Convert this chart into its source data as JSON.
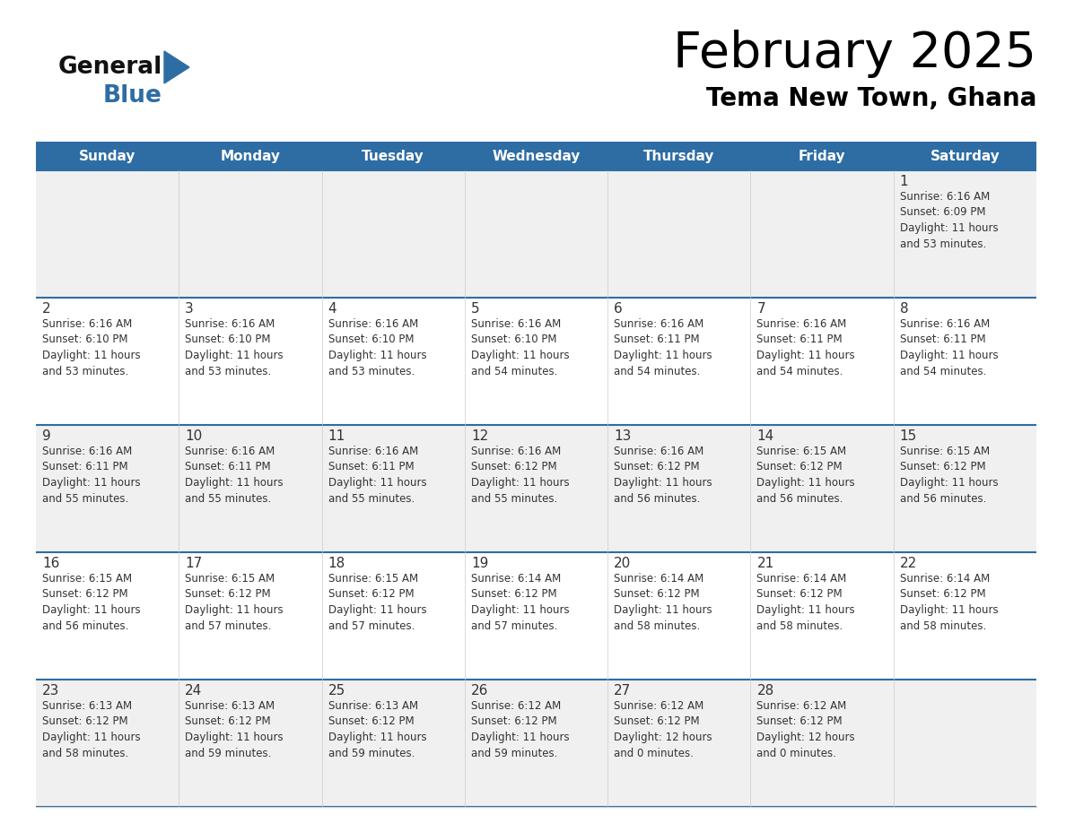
{
  "title": "February 2025",
  "subtitle": "Tema New Town, Ghana",
  "header_bg": "#2e6da4",
  "header_text": "#ffffff",
  "row0_bg": "#f0f0f0",
  "row1_bg": "#ffffff",
  "cell_text": "#333333",
  "border_color": "#2e6da4",
  "vert_line_color": "#cccccc",
  "day_headers": [
    "Sunday",
    "Monday",
    "Tuesday",
    "Wednesday",
    "Thursday",
    "Friday",
    "Saturday"
  ],
  "logo_general_color": "#111111",
  "logo_blue_color": "#2e6da4",
  "calendar": [
    [
      null,
      null,
      null,
      null,
      null,
      null,
      {
        "day": 1,
        "sunrise": "6:16 AM",
        "sunset": "6:09 PM",
        "daylight": "11 hours\nand 53 minutes."
      }
    ],
    [
      {
        "day": 2,
        "sunrise": "6:16 AM",
        "sunset": "6:10 PM",
        "daylight": "11 hours\nand 53 minutes."
      },
      {
        "day": 3,
        "sunrise": "6:16 AM",
        "sunset": "6:10 PM",
        "daylight": "11 hours\nand 53 minutes."
      },
      {
        "day": 4,
        "sunrise": "6:16 AM",
        "sunset": "6:10 PM",
        "daylight": "11 hours\nand 53 minutes."
      },
      {
        "day": 5,
        "sunrise": "6:16 AM",
        "sunset": "6:10 PM",
        "daylight": "11 hours\nand 54 minutes."
      },
      {
        "day": 6,
        "sunrise": "6:16 AM",
        "sunset": "6:11 PM",
        "daylight": "11 hours\nand 54 minutes."
      },
      {
        "day": 7,
        "sunrise": "6:16 AM",
        "sunset": "6:11 PM",
        "daylight": "11 hours\nand 54 minutes."
      },
      {
        "day": 8,
        "sunrise": "6:16 AM",
        "sunset": "6:11 PM",
        "daylight": "11 hours\nand 54 minutes."
      }
    ],
    [
      {
        "day": 9,
        "sunrise": "6:16 AM",
        "sunset": "6:11 PM",
        "daylight": "11 hours\nand 55 minutes."
      },
      {
        "day": 10,
        "sunrise": "6:16 AM",
        "sunset": "6:11 PM",
        "daylight": "11 hours\nand 55 minutes."
      },
      {
        "day": 11,
        "sunrise": "6:16 AM",
        "sunset": "6:11 PM",
        "daylight": "11 hours\nand 55 minutes."
      },
      {
        "day": 12,
        "sunrise": "6:16 AM",
        "sunset": "6:12 PM",
        "daylight": "11 hours\nand 55 minutes."
      },
      {
        "day": 13,
        "sunrise": "6:16 AM",
        "sunset": "6:12 PM",
        "daylight": "11 hours\nand 56 minutes."
      },
      {
        "day": 14,
        "sunrise": "6:15 AM",
        "sunset": "6:12 PM",
        "daylight": "11 hours\nand 56 minutes."
      },
      {
        "day": 15,
        "sunrise": "6:15 AM",
        "sunset": "6:12 PM",
        "daylight": "11 hours\nand 56 minutes."
      }
    ],
    [
      {
        "day": 16,
        "sunrise": "6:15 AM",
        "sunset": "6:12 PM",
        "daylight": "11 hours\nand 56 minutes."
      },
      {
        "day": 17,
        "sunrise": "6:15 AM",
        "sunset": "6:12 PM",
        "daylight": "11 hours\nand 57 minutes."
      },
      {
        "day": 18,
        "sunrise": "6:15 AM",
        "sunset": "6:12 PM",
        "daylight": "11 hours\nand 57 minutes."
      },
      {
        "day": 19,
        "sunrise": "6:14 AM",
        "sunset": "6:12 PM",
        "daylight": "11 hours\nand 57 minutes."
      },
      {
        "day": 20,
        "sunrise": "6:14 AM",
        "sunset": "6:12 PM",
        "daylight": "11 hours\nand 58 minutes."
      },
      {
        "day": 21,
        "sunrise": "6:14 AM",
        "sunset": "6:12 PM",
        "daylight": "11 hours\nand 58 minutes."
      },
      {
        "day": 22,
        "sunrise": "6:14 AM",
        "sunset": "6:12 PM",
        "daylight": "11 hours\nand 58 minutes."
      }
    ],
    [
      {
        "day": 23,
        "sunrise": "6:13 AM",
        "sunset": "6:12 PM",
        "daylight": "11 hours\nand 58 minutes."
      },
      {
        "day": 24,
        "sunrise": "6:13 AM",
        "sunset": "6:12 PM",
        "daylight": "11 hours\nand 59 minutes."
      },
      {
        "day": 25,
        "sunrise": "6:13 AM",
        "sunset": "6:12 PM",
        "daylight": "11 hours\nand 59 minutes."
      },
      {
        "day": 26,
        "sunrise": "6:12 AM",
        "sunset": "6:12 PM",
        "daylight": "11 hours\nand 59 minutes."
      },
      {
        "day": 27,
        "sunrise": "6:12 AM",
        "sunset": "6:12 PM",
        "daylight": "12 hours\nand 0 minutes."
      },
      {
        "day": 28,
        "sunrise": "6:12 AM",
        "sunset": "6:12 PM",
        "daylight": "12 hours\nand 0 minutes."
      },
      null
    ]
  ]
}
